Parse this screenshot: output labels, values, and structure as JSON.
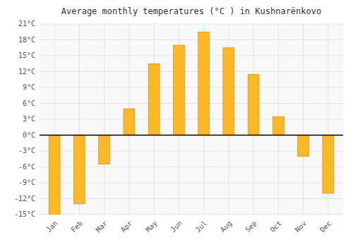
{
  "chart_data": {
    "type": "bar",
    "title": "Average monthly temperatures (°C ) in Kushnarënkovo",
    "categories": [
      "Jan",
      "Feb",
      "Mar",
      "Apr",
      "May",
      "Jun",
      "Jul",
      "Aug",
      "Sep",
      "Oct",
      "Nov",
      "Dec"
    ],
    "values": [
      -15,
      -13,
      -5.5,
      5,
      13.5,
      17,
      19.5,
      16.5,
      11.5,
      3.5,
      -4,
      -11
    ],
    "color": "#FDB825",
    "ylim": [
      -15,
      21
    ],
    "yticks": [
      {
        "value": -15,
        "label": "-15°C"
      },
      {
        "value": -12,
        "label": "-12°C"
      },
      {
        "value": -9,
        "label": "-9°C"
      },
      {
        "value": -6,
        "label": "-6°C"
      },
      {
        "value": -3,
        "label": "-3°C"
      },
      {
        "value": 0,
        "label": "0°C"
      },
      {
        "value": 3,
        "label": "3°C"
      },
      {
        "value": 6,
        "label": "6°C"
      },
      {
        "value": 9,
        "label": "9°C"
      },
      {
        "value": 12,
        "label": "12°C"
      },
      {
        "value": 15,
        "label": "15°C"
      },
      {
        "value": 18,
        "label": "18°C"
      },
      {
        "value": 21,
        "label": "21°C"
      }
    ],
    "grid": true
  }
}
